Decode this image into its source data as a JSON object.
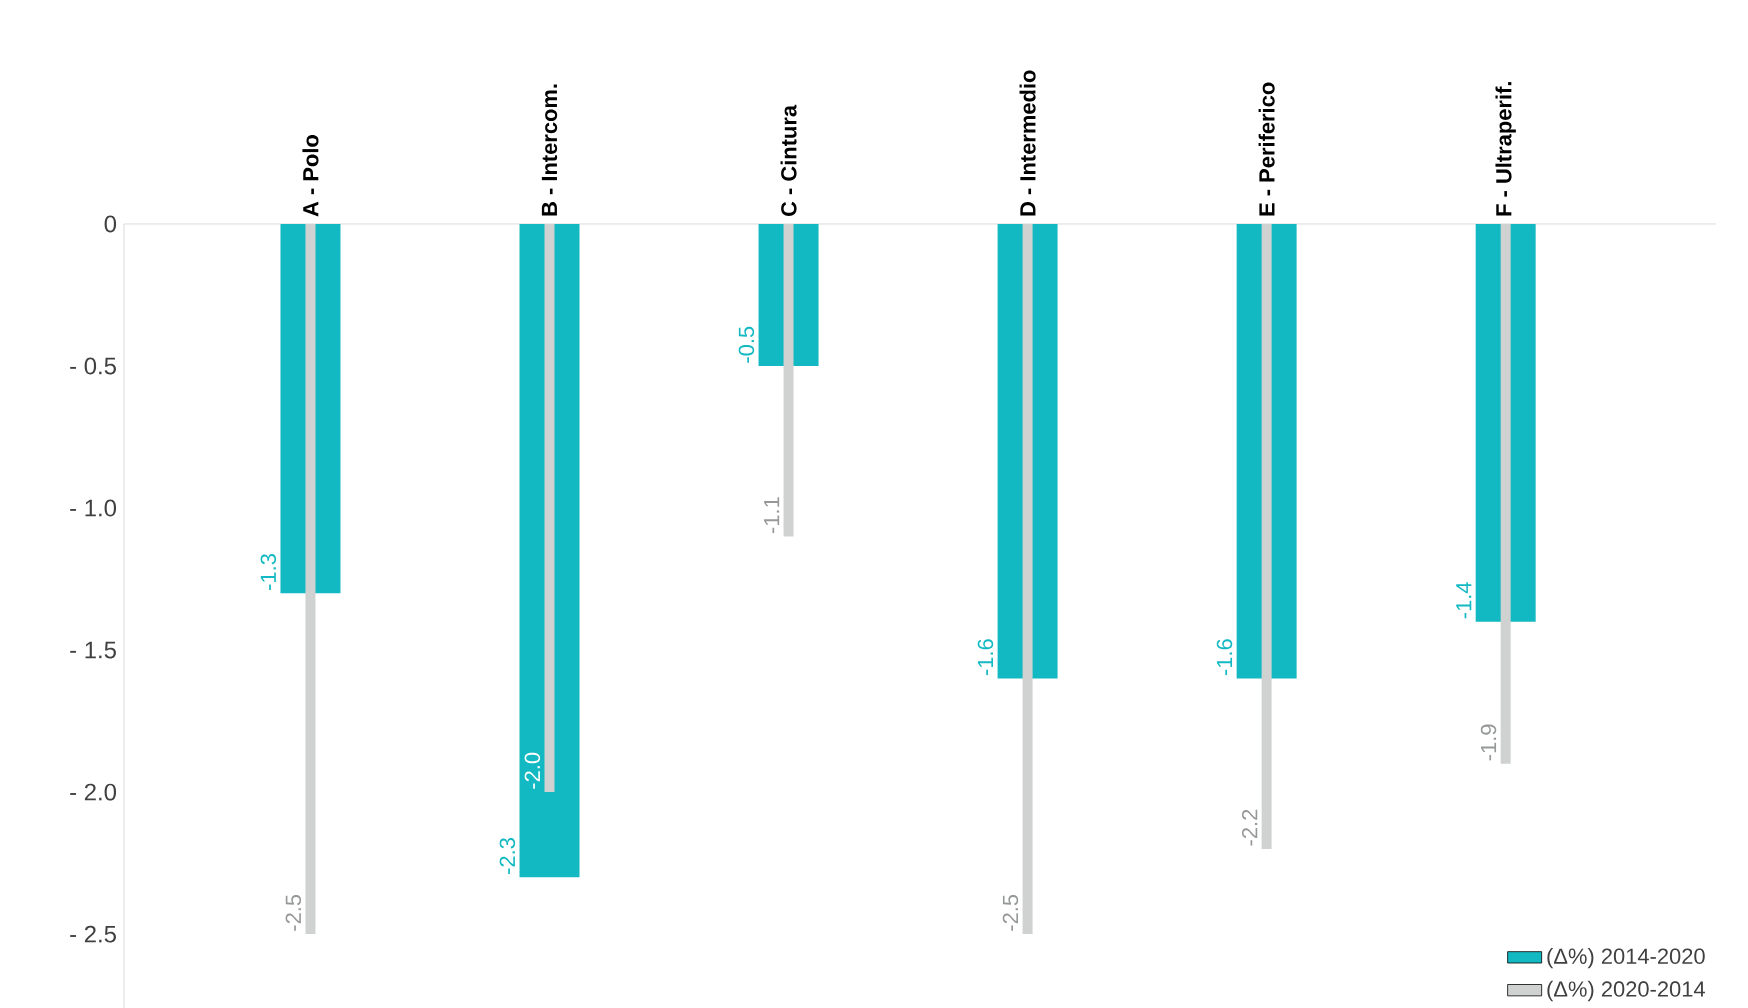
{
  "chart_data": {
    "type": "bar",
    "categories": [
      "A - Polo",
      "B - Intercom.",
      "C - Cintura",
      "D - Intermedio",
      "E - Periferico",
      "F - Ultraperif."
    ],
    "series": [
      {
        "name": "(Δ%)  2014-2020",
        "color": "#13b9c2",
        "values": [
          -1.3,
          -2.3,
          -0.5,
          -1.6,
          -1.6,
          -1.4
        ],
        "value_labels": [
          "-1.3",
          "-2.3",
          "-0.5",
          "-1.6",
          "-1.6",
          "-1.4"
        ]
      },
      {
        "name": "(Δ%)  2020-2014",
        "color": "#d0d2d2",
        "values": [
          -2.5,
          -2.0,
          -1.1,
          -2.5,
          -2.2,
          -1.9
        ],
        "value_labels": [
          "-2.5",
          "-2.0",
          "-1.1",
          "-2.5",
          "-2.2",
          "-1.9"
        ]
      }
    ],
    "ylim": [
      -2.76,
      0
    ],
    "yticks": [
      {
        "value": 0,
        "label": "0"
      },
      {
        "value": -0.5,
        "label": "- 0.5"
      },
      {
        "value": -1.0,
        "label": "- 1.0"
      },
      {
        "value": -1.5,
        "label": "- 1.5"
      },
      {
        "value": -2.0,
        "label": "- 2.0"
      },
      {
        "value": -2.5,
        "label": "- 2.5"
      }
    ],
    "grid": false,
    "legend": "bottom right"
  }
}
